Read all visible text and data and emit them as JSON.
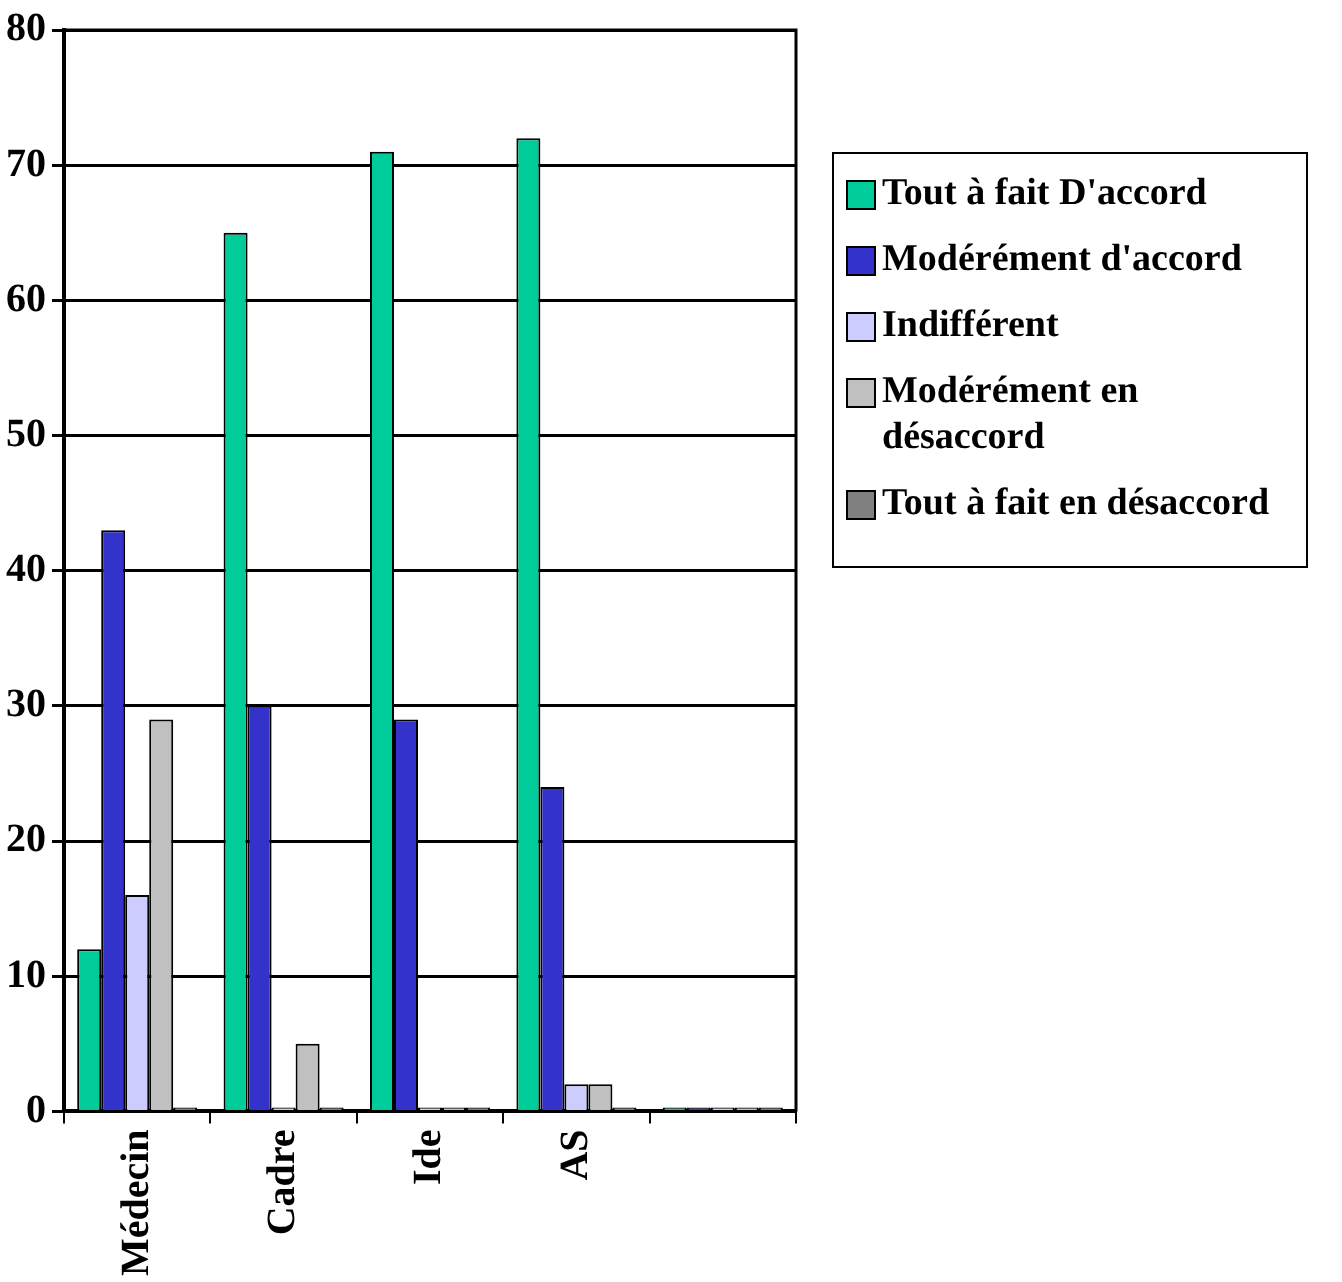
{
  "chart_data": {
    "type": "bar",
    "categories": [
      "Médecin",
      "Cadre",
      "Ide",
      "AS",
      null
    ],
    "series": [
      {
        "name": "Tout à fait D'accord",
        "color": "#00cc99",
        "values": [
          12,
          65,
          71,
          72,
          0
        ]
      },
      {
        "name": "Modérément d'accord",
        "color": "#3333cc",
        "values": [
          43,
          30,
          29,
          24,
          0
        ]
      },
      {
        "name": "Indifférent",
        "color": "#ccccff",
        "values": [
          16,
          0,
          0,
          2,
          0
        ]
      },
      {
        "name": "Modérément en désaccord",
        "color": "#c0c0c0",
        "values": [
          29,
          5,
          0,
          2,
          0
        ]
      },
      {
        "name": "Tout à fait en désaccord",
        "color": "#808080",
        "values": [
          0,
          0,
          0,
          0,
          0
        ]
      }
    ],
    "ylim": [
      0,
      80
    ],
    "yticks": [
      0,
      10,
      20,
      30,
      40,
      50,
      60,
      70,
      80
    ],
    "grid": "y",
    "legend": "right"
  }
}
